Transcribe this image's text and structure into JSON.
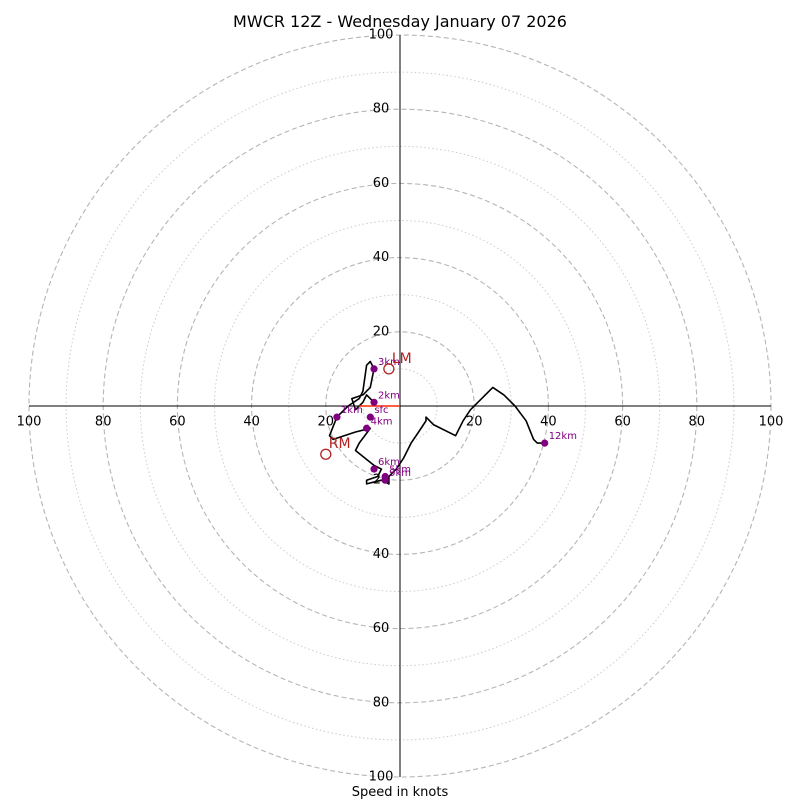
{
  "chart_data": {
    "type": "hodograph",
    "title": "MWCR 12Z - Wednesday January 07 2026",
    "xlabel": "Speed in knots",
    "range_max": 100,
    "ring_step_major": 20,
    "ring_step_minor": 10,
    "tick_labels": {
      "left": [
        "100",
        "80",
        "60",
        "40",
        "20"
      ],
      "right": [
        "20",
        "40",
        "60",
        "80",
        "100"
      ],
      "top": [
        "20",
        "40",
        "60",
        "80",
        "100"
      ],
      "bottom": [
        "20",
        "40",
        "60",
        "80",
        "100"
      ]
    },
    "tick_values": [
      20,
      40,
      60,
      80,
      100
    ],
    "trace": [
      [
        -7,
        1
      ],
      [
        -9,
        3
      ],
      [
        -10,
        1
      ],
      [
        -12,
        -1
      ],
      [
        -13,
        2
      ],
      [
        -10,
        3
      ],
      [
        -8,
        5
      ],
      [
        -7,
        10
      ],
      [
        -8,
        12
      ],
      [
        -9,
        11
      ],
      [
        -10,
        4
      ],
      [
        -11,
        2
      ],
      [
        -14,
        0
      ],
      [
        -17,
        -3
      ],
      [
        -19,
        -8
      ],
      [
        -18,
        -9
      ],
      [
        -12,
        -7
      ],
      [
        -8,
        -6
      ],
      [
        -11,
        -10
      ],
      [
        -12,
        -12
      ],
      [
        -7,
        -16
      ],
      [
        -5,
        -17
      ],
      [
        -6,
        -19
      ],
      [
        -9,
        -20
      ],
      [
        -9,
        -21
      ],
      [
        -5,
        -20
      ],
      [
        -3,
        -21
      ],
      [
        -3,
        -19
      ],
      [
        -1,
        -17
      ],
      [
        1,
        -14
      ],
      [
        3,
        -10
      ],
      [
        5,
        -7
      ],
      [
        7,
        -4
      ],
      [
        7,
        -3
      ],
      [
        9,
        -5
      ],
      [
        15,
        -8
      ],
      [
        17,
        -4
      ],
      [
        19,
        -1
      ],
      [
        23,
        3
      ],
      [
        25,
        5
      ],
      [
        28,
        3
      ],
      [
        31,
        0
      ],
      [
        34,
        -4
      ],
      [
        36,
        -9
      ],
      [
        37,
        -10
      ],
      [
        39,
        -10
      ]
    ],
    "height_markers": [
      {
        "label": "sfc",
        "u": -8,
        "v": -3
      },
      {
        "label": "1km",
        "u": -17,
        "v": -3
      },
      {
        "label": "2km",
        "u": -7,
        "v": 1
      },
      {
        "label": "3km",
        "u": -7,
        "v": 10
      },
      {
        "label": "4km",
        "u": -9,
        "v": -6
      },
      {
        "label": "5km",
        "u": -4,
        "v": -19
      },
      {
        "label": "6km",
        "u": -7,
        "v": -17
      },
      {
        "label": "9km",
        "u": -4,
        "v": -20
      },
      {
        "label": "12km",
        "u": 39,
        "v": -10
      }
    ],
    "storm_motion": [
      {
        "label": "LM",
        "u": -3,
        "v": 10
      },
      {
        "label": "RM",
        "u": -20,
        "v": -13
      }
    ],
    "mean_wind_vector": {
      "from": [
        -11,
        0
      ],
      "to": [
        0,
        0
      ]
    },
    "colors": {
      "trace": "#000000",
      "markers": "#800080",
      "storm": "#b22222",
      "vector": "#ff2a00",
      "ring_major": "#b5b5b5",
      "ring_minor": "#cccccc",
      "axis": "#000000"
    }
  }
}
